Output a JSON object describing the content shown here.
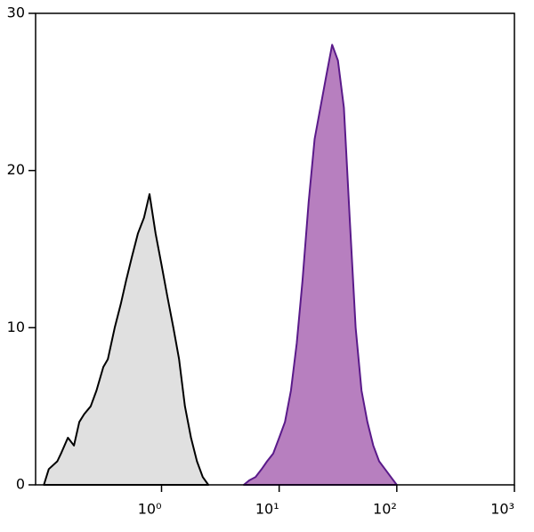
{
  "chart_data": {
    "type": "area",
    "xscale": "log",
    "xlim": [
      0.085,
      1000
    ],
    "ylim": [
      0,
      30
    ],
    "xticks": [
      {
        "value": 1,
        "label": "10⁰"
      },
      {
        "value": 10,
        "label": "10¹"
      },
      {
        "value": 100,
        "label": "10²"
      },
      {
        "value": 1000,
        "label": "10³"
      }
    ],
    "yticks": [
      0,
      10,
      20,
      30
    ],
    "series": [
      {
        "color": "#e0e0e0",
        "stroke": "#000000",
        "x": [
          0.1,
          0.11,
          0.13,
          0.14,
          0.16,
          0.18,
          0.2,
          0.22,
          0.25,
          0.28,
          0.32,
          0.35,
          0.4,
          0.45,
          0.5,
          0.56,
          0.63,
          0.71,
          0.79,
          0.89,
          1.0,
          1.12,
          1.26,
          1.41,
          1.58,
          1.78,
          2.0,
          2.24,
          2.5
        ],
        "values": [
          0,
          1,
          1.5,
          2,
          3,
          2.5,
          4,
          4.5,
          5,
          6,
          7.5,
          8,
          10,
          11.5,
          13,
          14.5,
          16,
          17,
          18.5,
          16,
          14,
          12,
          10,
          8,
          5,
          3,
          1.5,
          0.5,
          0
        ]
      },
      {
        "color": "#b77fbf",
        "stroke": "#5a1a8a",
        "x": [
          5,
          5.6,
          6.3,
          7.1,
          7.9,
          8.9,
          10,
          11.2,
          12.6,
          14.1,
          15.8,
          17.8,
          20,
          22.4,
          25.1,
          28.2,
          31.6,
          35.5,
          39.8,
          44.7,
          50.1,
          56.2,
          63.1,
          70.8,
          79.4,
          89.1,
          100
        ],
        "values": [
          0,
          0.3,
          0.5,
          1,
          1.5,
          2,
          3,
          4,
          6,
          9,
          13,
          18,
          22,
          24,
          26,
          28,
          27,
          24,
          17,
          10,
          6,
          4,
          2.5,
          1.5,
          1,
          0.5,
          0
        ]
      }
    ]
  }
}
